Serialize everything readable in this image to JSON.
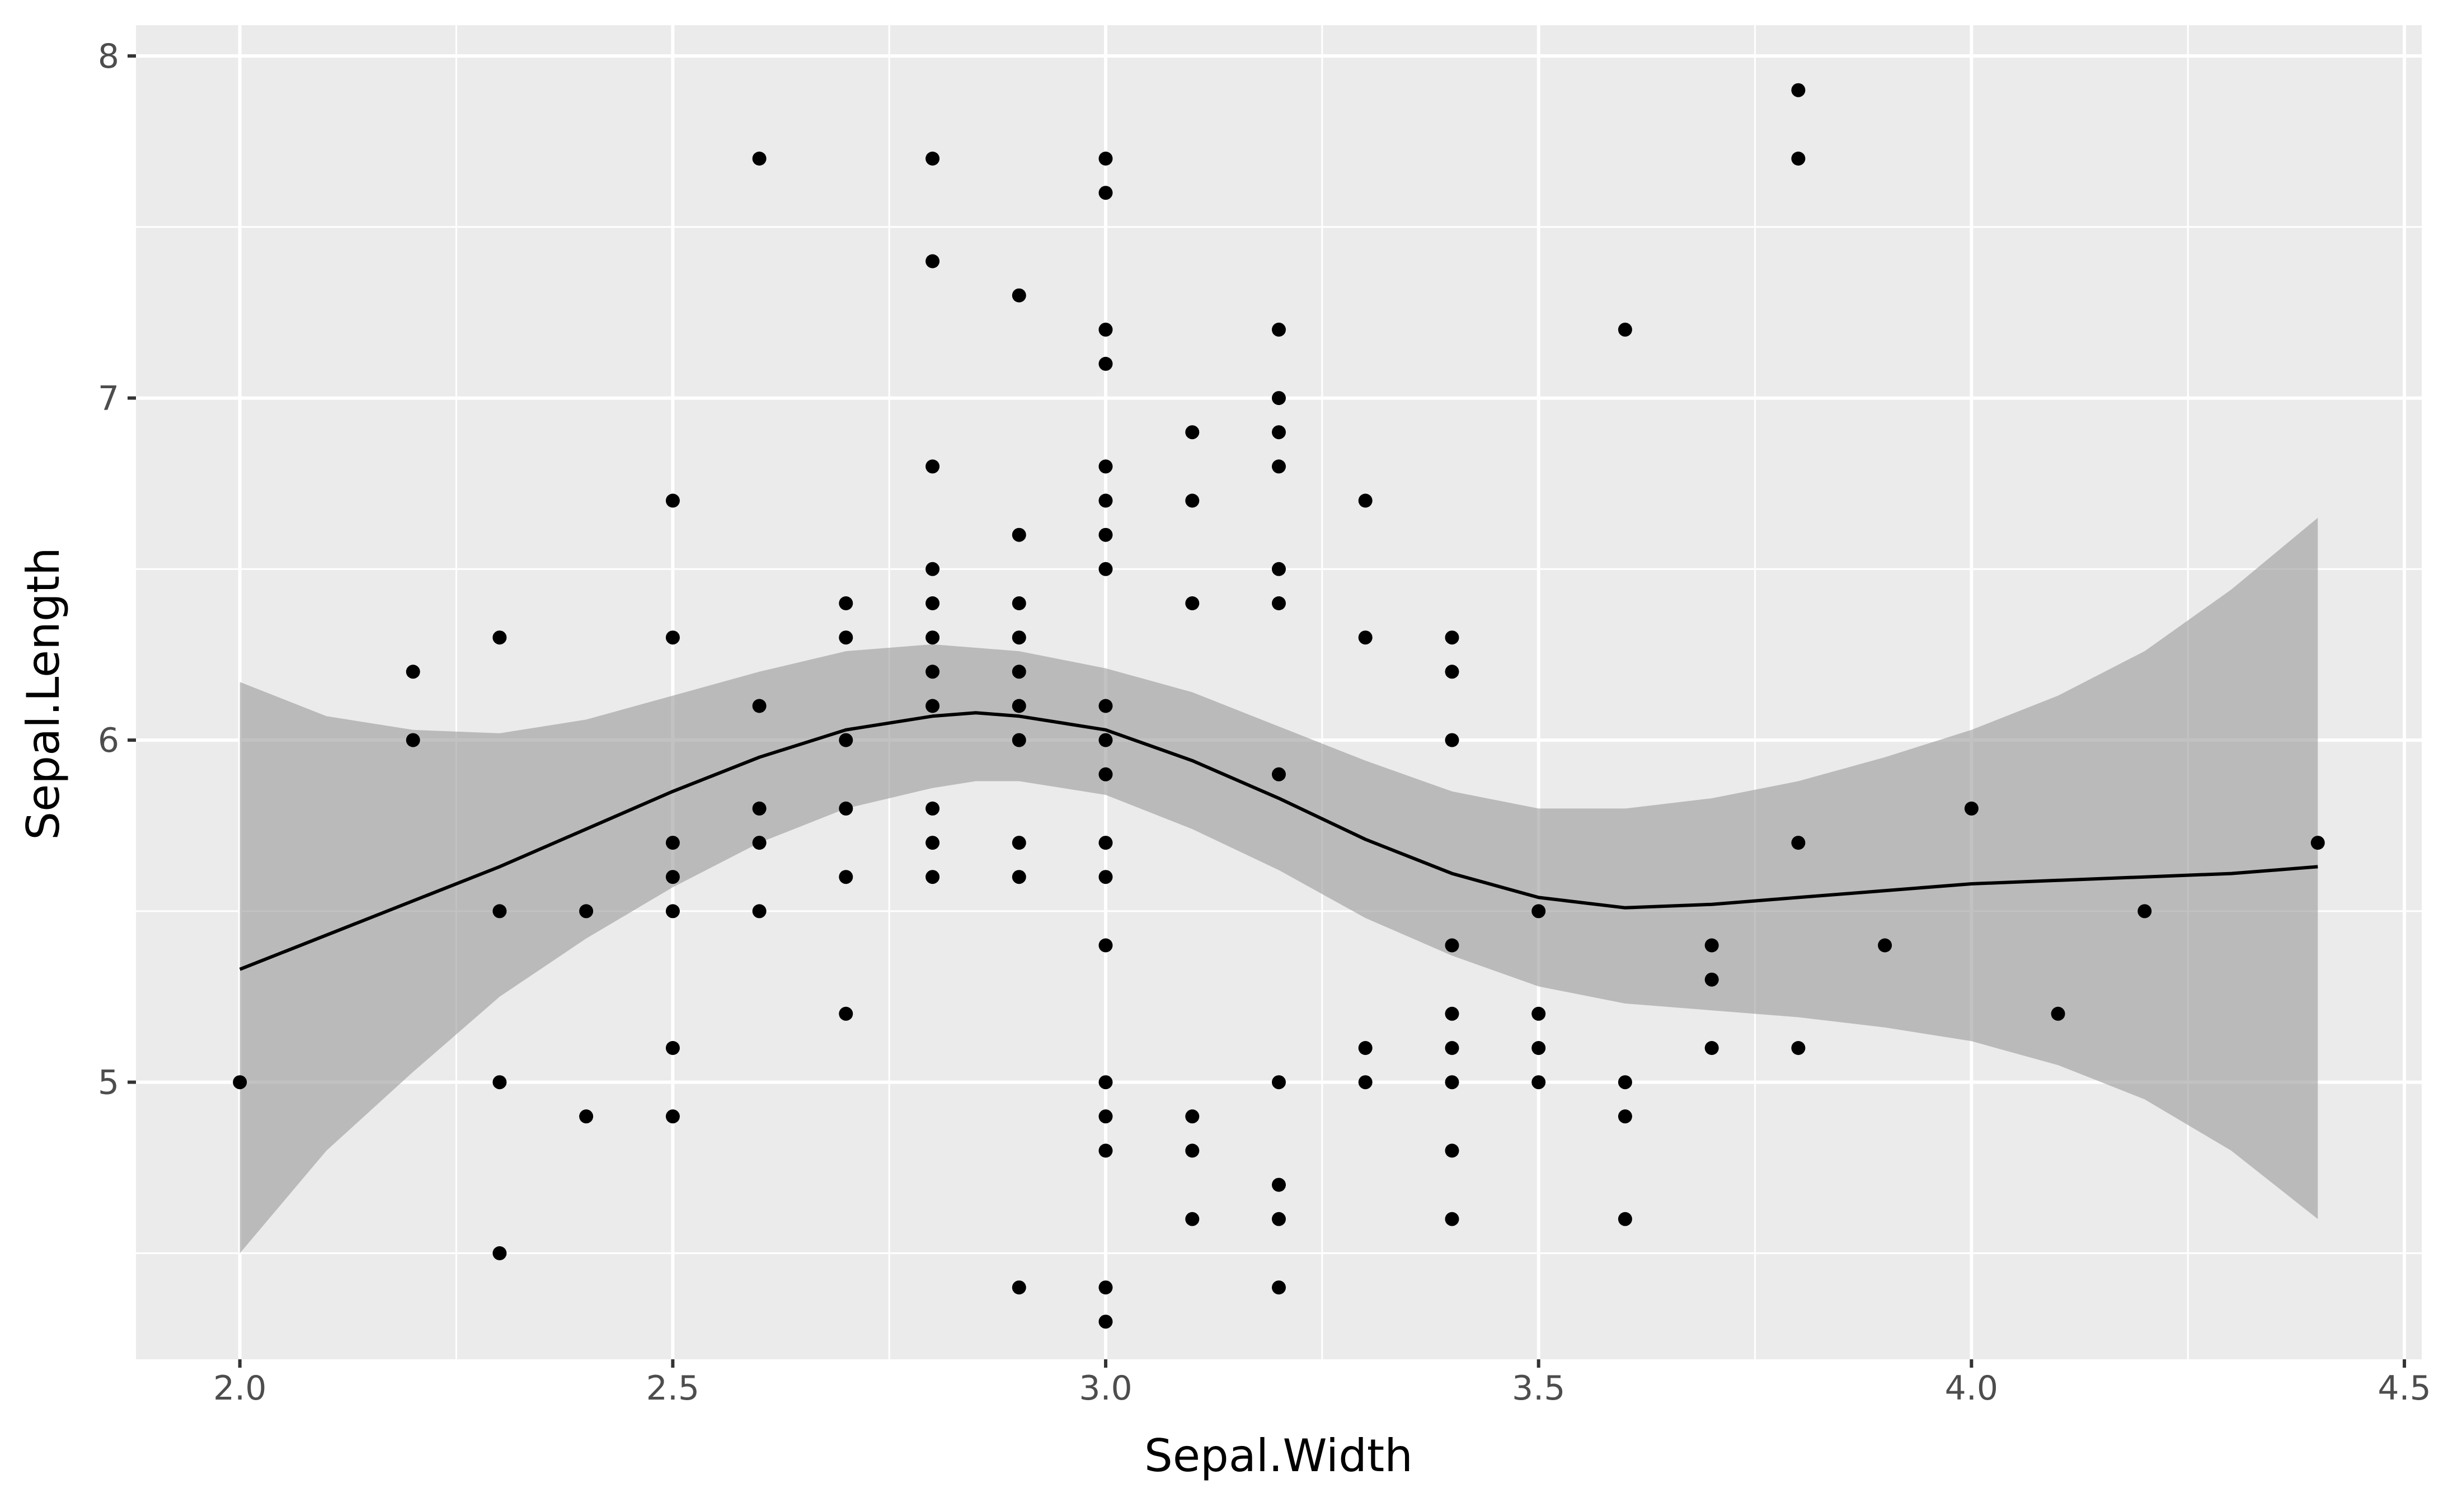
{
  "chart_data": {
    "type": "scatter",
    "xlabel": "Sepal.Width",
    "ylabel": "Sepal.Length",
    "xlim": [
      1.88,
      4.52
    ],
    "ylim": [
      4.19,
      8.09
    ],
    "x_ticks": [
      2.0,
      2.5,
      3.0,
      3.5,
      4.0,
      4.5
    ],
    "x_tick_labels": [
      "2.0",
      "2.5",
      "3.0",
      "3.5",
      "4.0",
      "4.5"
    ],
    "y_ticks": [
      5,
      6,
      7,
      8
    ],
    "y_tick_labels": [
      "5",
      "6",
      "7",
      "8"
    ],
    "grid": true,
    "colors": {
      "panel": "#ebebeb",
      "grid": "#ffffff",
      "points": "#000000",
      "band": "#999999",
      "line": "#000000"
    },
    "points": [
      [
        2.0,
        5.0
      ],
      [
        2.2,
        6.2
      ],
      [
        2.2,
        6.0
      ],
      [
        2.3,
        6.3
      ],
      [
        2.3,
        5.5
      ],
      [
        2.3,
        5.0
      ],
      [
        2.3,
        4.5
      ],
      [
        2.4,
        5.5
      ],
      [
        2.4,
        4.9
      ],
      [
        2.5,
        6.7
      ],
      [
        2.5,
        6.3
      ],
      [
        2.5,
        5.7
      ],
      [
        2.5,
        5.6
      ],
      [
        2.5,
        5.5
      ],
      [
        2.5,
        5.1
      ],
      [
        2.5,
        4.9
      ],
      [
        2.6,
        7.7
      ],
      [
        2.6,
        6.1
      ],
      [
        2.6,
        5.8
      ],
      [
        2.6,
        5.7
      ],
      [
        2.6,
        5.5
      ],
      [
        2.7,
        6.4
      ],
      [
        2.7,
        6.3
      ],
      [
        2.7,
        6.0
      ],
      [
        2.7,
        5.8
      ],
      [
        2.7,
        5.6
      ],
      [
        2.7,
        5.2
      ],
      [
        2.8,
        7.7
      ],
      [
        2.8,
        7.4
      ],
      [
        2.8,
        6.8
      ],
      [
        2.8,
        6.5
      ],
      [
        2.8,
        6.4
      ],
      [
        2.8,
        6.3
      ],
      [
        2.8,
        6.2
      ],
      [
        2.8,
        6.1
      ],
      [
        2.8,
        5.8
      ],
      [
        2.8,
        5.7
      ],
      [
        2.8,
        5.6
      ],
      [
        2.9,
        7.3
      ],
      [
        2.9,
        6.6
      ],
      [
        2.9,
        6.4
      ],
      [
        2.9,
        6.3
      ],
      [
        2.9,
        6.2
      ],
      [
        2.9,
        6.1
      ],
      [
        2.9,
        6.0
      ],
      [
        2.9,
        5.7
      ],
      [
        2.9,
        5.6
      ],
      [
        2.9,
        4.4
      ],
      [
        3.0,
        7.7
      ],
      [
        3.0,
        7.6
      ],
      [
        3.0,
        7.2
      ],
      [
        3.0,
        7.1
      ],
      [
        3.0,
        6.8
      ],
      [
        3.0,
        6.7
      ],
      [
        3.0,
        6.6
      ],
      [
        3.0,
        6.5
      ],
      [
        3.0,
        6.1
      ],
      [
        3.0,
        6.0
      ],
      [
        3.0,
        5.9
      ],
      [
        3.0,
        5.7
      ],
      [
        3.0,
        5.6
      ],
      [
        3.0,
        5.4
      ],
      [
        3.0,
        5.0
      ],
      [
        3.0,
        4.9
      ],
      [
        3.0,
        4.8
      ],
      [
        3.0,
        4.4
      ],
      [
        3.0,
        4.3
      ],
      [
        3.1,
        6.9
      ],
      [
        3.1,
        6.7
      ],
      [
        3.1,
        6.4
      ],
      [
        3.1,
        4.9
      ],
      [
        3.1,
        4.8
      ],
      [
        3.1,
        4.6
      ],
      [
        3.2,
        7.2
      ],
      [
        3.2,
        7.0
      ],
      [
        3.2,
        6.9
      ],
      [
        3.2,
        6.8
      ],
      [
        3.2,
        6.5
      ],
      [
        3.2,
        6.4
      ],
      [
        3.2,
        5.9
      ],
      [
        3.2,
        5.0
      ],
      [
        3.2,
        4.7
      ],
      [
        3.2,
        4.6
      ],
      [
        3.2,
        4.4
      ],
      [
        3.3,
        6.7
      ],
      [
        3.3,
        6.3
      ],
      [
        3.3,
        5.1
      ],
      [
        3.3,
        5.0
      ],
      [
        3.4,
        6.3
      ],
      [
        3.4,
        6.2
      ],
      [
        3.4,
        6.0
      ],
      [
        3.4,
        5.4
      ],
      [
        3.4,
        5.2
      ],
      [
        3.4,
        5.1
      ],
      [
        3.4,
        5.0
      ],
      [
        3.4,
        4.8
      ],
      [
        3.4,
        4.6
      ],
      [
        3.5,
        5.5
      ],
      [
        3.5,
        5.2
      ],
      [
        3.5,
        5.1
      ],
      [
        3.5,
        5.0
      ],
      [
        3.6,
        7.2
      ],
      [
        3.6,
        5.0
      ],
      [
        3.6,
        4.9
      ],
      [
        3.6,
        4.6
      ],
      [
        3.7,
        5.4
      ],
      [
        3.7,
        5.3
      ],
      [
        3.7,
        5.1
      ],
      [
        3.8,
        7.9
      ],
      [
        3.8,
        7.7
      ],
      [
        3.8,
        5.7
      ],
      [
        3.8,
        5.1
      ],
      [
        3.9,
        5.4
      ],
      [
        4.0,
        5.8
      ],
      [
        4.1,
        5.2
      ],
      [
        4.2,
        5.5
      ],
      [
        4.4,
        5.7
      ]
    ],
    "smooth": {
      "x": [
        2.0,
        2.1,
        2.2,
        2.3,
        2.4,
        2.5,
        2.6,
        2.7,
        2.8,
        2.85,
        2.9,
        3.0,
        3.1,
        3.2,
        3.3,
        3.4,
        3.5,
        3.6,
        3.7,
        3.8,
        3.9,
        4.0,
        4.1,
        4.2,
        4.3,
        4.4
      ],
      "y": [
        5.33,
        5.43,
        5.53,
        5.63,
        5.74,
        5.85,
        5.95,
        6.03,
        6.07,
        6.08,
        6.07,
        6.03,
        5.94,
        5.83,
        5.71,
        5.61,
        5.54,
        5.51,
        5.52,
        5.54,
        5.56,
        5.58,
        5.59,
        5.6,
        5.61,
        5.63
      ],
      "upper": [
        6.17,
        6.07,
        6.03,
        6.02,
        6.06,
        6.13,
        6.2,
        6.26,
        6.28,
        6.27,
        6.26,
        6.21,
        6.14,
        6.04,
        5.94,
        5.85,
        5.8,
        5.8,
        5.83,
        5.88,
        5.95,
        6.03,
        6.13,
        6.26,
        6.44,
        6.65
      ],
      "lower": [
        4.5,
        4.8,
        5.03,
        5.25,
        5.42,
        5.57,
        5.7,
        5.8,
        5.86,
        5.88,
        5.88,
        5.84,
        5.74,
        5.62,
        5.48,
        5.37,
        5.28,
        5.23,
        5.21,
        5.19,
        5.16,
        5.12,
        5.05,
        4.95,
        4.8,
        4.6
      ]
    }
  }
}
